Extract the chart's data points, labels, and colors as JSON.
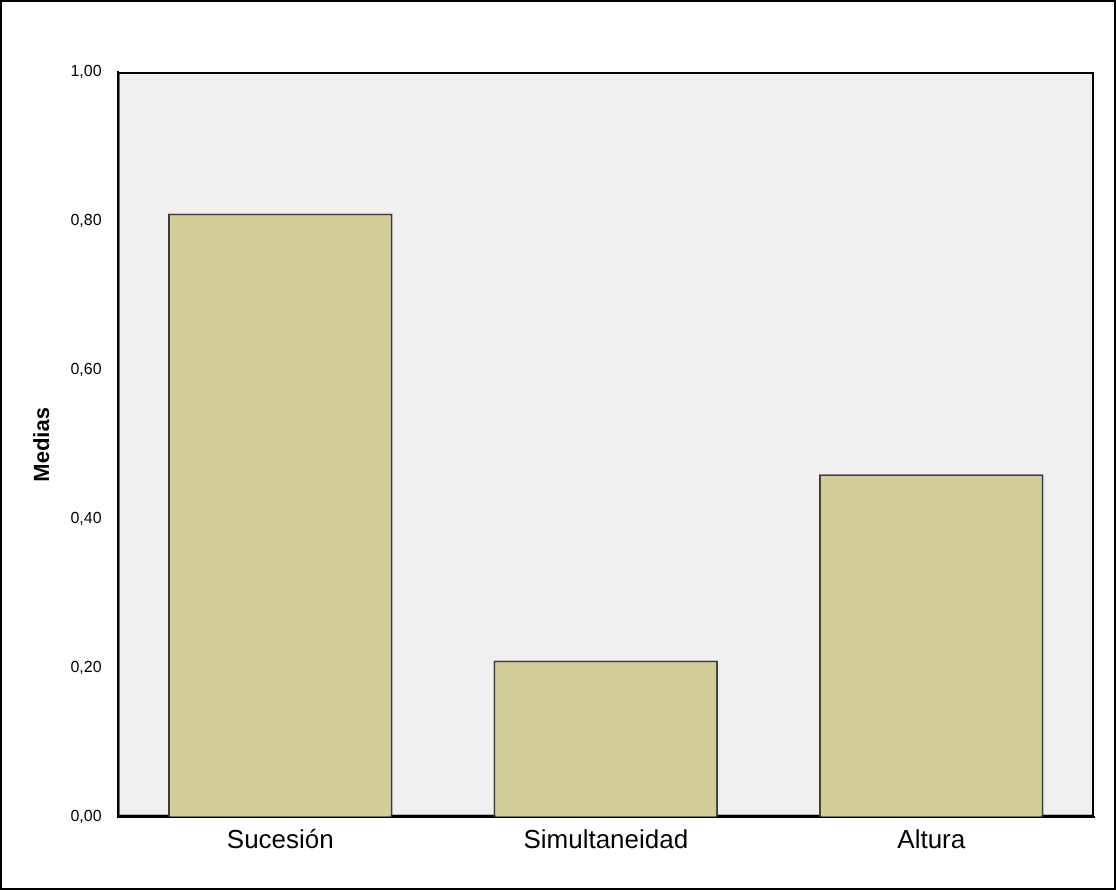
{
  "chart_data": {
    "type": "bar",
    "ylabel": "Medias",
    "categories": [
      "Sucesión",
      "Simultaneidad",
      "Altura"
    ],
    "values": [
      0.81,
      0.21,
      0.46
    ],
    "color": "#d3ce97",
    "ylim": [
      0,
      1
    ],
    "yticks": [
      {
        "value": 0,
        "label": "0,00"
      },
      {
        "value": 0.2,
        "label": "0,20"
      },
      {
        "value": 0.4,
        "label": "0,40"
      },
      {
        "value": 0.6,
        "label": "0,60"
      },
      {
        "value": 0.8,
        "label": "0,80"
      },
      {
        "value": 1,
        "label": "1,00"
      }
    ],
    "grid": false,
    "legend": false
  }
}
